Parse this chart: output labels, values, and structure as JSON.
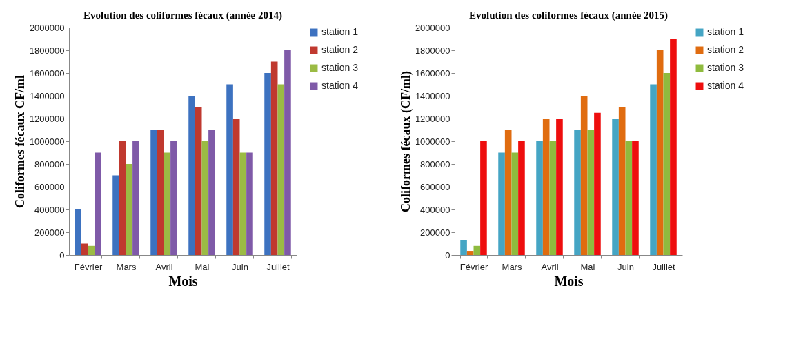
{
  "chart_data": [
    {
      "type": "bar",
      "title": "Evolution des coliformes fécaux (année 2014)",
      "xlabel": "Mois",
      "ylabel": "Coliformes fécaux CF/ml",
      "categories": [
        "Février",
        "Mars",
        "Avril",
        "Mai",
        "Juin",
        "Juillet"
      ],
      "ylim": [
        0,
        2000000
      ],
      "yticks": [
        0,
        200000,
        400000,
        600000,
        800000,
        1000000,
        1200000,
        1400000,
        1600000,
        1800000,
        2000000
      ],
      "legend": "right",
      "series": [
        {
          "name": "station 1",
          "color": "#3d72c0",
          "values": [
            400000,
            700000,
            1100000,
            1400000,
            1500000,
            1600000
          ]
        },
        {
          "name": "station 2",
          "color": "#c0392f",
          "values": [
            100000,
            1000000,
            1100000,
            1300000,
            1200000,
            1700000
          ]
        },
        {
          "name": "station 3",
          "color": "#9bbb44",
          "values": [
            80000,
            800000,
            900000,
            1000000,
            900000,
            1500000
          ]
        },
        {
          "name": "station 4",
          "color": "#7f5aa8",
          "values": [
            900000,
            1000000,
            1000000,
            1100000,
            900000,
            1800000
          ]
        }
      ]
    },
    {
      "type": "bar",
      "title": "Evolution des coliformes fécaux (année 2015)",
      "xlabel": "Mois",
      "ylabel": "Coliformes  fécaux (CF/ml)",
      "categories": [
        "Février",
        "Mars",
        "Avril",
        "Mai",
        "Juin",
        "Juillet"
      ],
      "ylim": [
        0,
        2000000
      ],
      "yticks": [
        0,
        200000,
        400000,
        600000,
        800000,
        1000000,
        1200000,
        1400000,
        1600000,
        1800000,
        2000000
      ],
      "legend": "right",
      "series": [
        {
          "name": "station 1",
          "color": "#45a5c4",
          "values": [
            130000,
            900000,
            1000000,
            1100000,
            1200000,
            1500000
          ]
        },
        {
          "name": "station 2",
          "color": "#e06c10",
          "values": [
            30000,
            1100000,
            1200000,
            1400000,
            1300000,
            1800000
          ]
        },
        {
          "name": "station 3",
          "color": "#8fbb3e",
          "values": [
            80000,
            900000,
            1000000,
            1100000,
            1000000,
            1600000
          ]
        },
        {
          "name": "station 4",
          "color": "#ee0e0e",
          "values": [
            1000000,
            1000000,
            1200000,
            1250000,
            1000000,
            1900000
          ]
        }
      ]
    }
  ]
}
